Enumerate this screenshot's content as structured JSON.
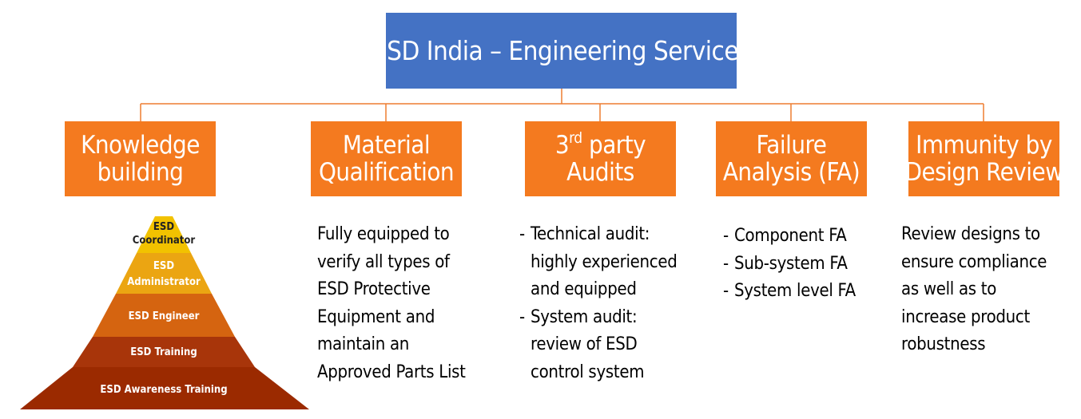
{
  "title": "ESD India – Engineering Services",
  "categories": [
    {
      "id": "knowledge",
      "label_line1": "Knowledge",
      "label_line2": "building"
    },
    {
      "id": "material",
      "label_line1": "Material",
      "label_line2": "Qualification"
    },
    {
      "id": "audits",
      "label_prefix": "3",
      "label_sup": "rd",
      "label_suffix": " party",
      "label_line2": "Audits"
    },
    {
      "id": "failure",
      "label_line1": "Failure",
      "label_line2": "Analysis (FA)"
    },
    {
      "id": "immunity",
      "label_line1": "Immunity by",
      "label_line2": "Design Review"
    }
  ],
  "pyramid": {
    "levels": [
      {
        "line1": "ESD",
        "line2": "Coordinator"
      },
      {
        "line1": "ESD",
        "line2": "Administrator"
      },
      {
        "line1": "ESD Engineer"
      },
      {
        "line1": "ESD Training"
      },
      {
        "line1": "ESD Awareness Training"
      }
    ],
    "colors": [
      "#f2c200",
      "#eba512",
      "#d56410",
      "#a8350a",
      "#9b2a00"
    ]
  },
  "material_desc": [
    "Fully equipped to",
    "verify all types of",
    "ESD Protective",
    "Equipment and",
    "maintain an",
    "Approved Parts List"
  ],
  "audits_desc": [
    {
      "line1": "Technical audit:",
      "line2": "highly experienced",
      "line3": "and equipped"
    },
    {
      "line1": "System audit:",
      "line2": "review of ESD",
      "line3": "control system"
    }
  ],
  "failure_desc": [
    "Component FA",
    "Sub-system FA",
    "System level FA"
  ],
  "immunity_desc": [
    "Review designs to",
    "ensure compliance",
    "as well as to",
    "increase product",
    "robustness"
  ]
}
